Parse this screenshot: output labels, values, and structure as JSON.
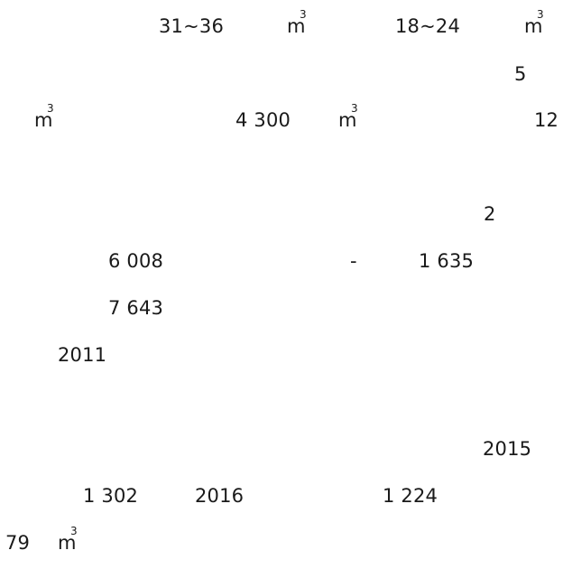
{
  "lines": [
    {
      "a": "31~36",
      "unit_base": "m",
      "unit_exp": "3",
      "b": "18~24",
      "unit2_base": "m",
      "unit2_exp": "3"
    },
    {
      "a": "5"
    },
    {
      "unit_base": "m",
      "unit_exp": "3",
      "b": "4 300",
      "unit2_base": "m",
      "unit2_exp": "3",
      "c": "12"
    },
    {
      "a": "2"
    },
    {
      "a": "6 008",
      "sep": "-",
      "b": "1 635"
    },
    {
      "a": "7 643"
    },
    {
      "a": "2011"
    },
    {
      "a": "2015"
    },
    {
      "a": "1 302",
      "b": "2016",
      "c": "1 224"
    },
    {
      "a": "79",
      "unit_base": "m",
      "unit_exp": "3"
    }
  ]
}
